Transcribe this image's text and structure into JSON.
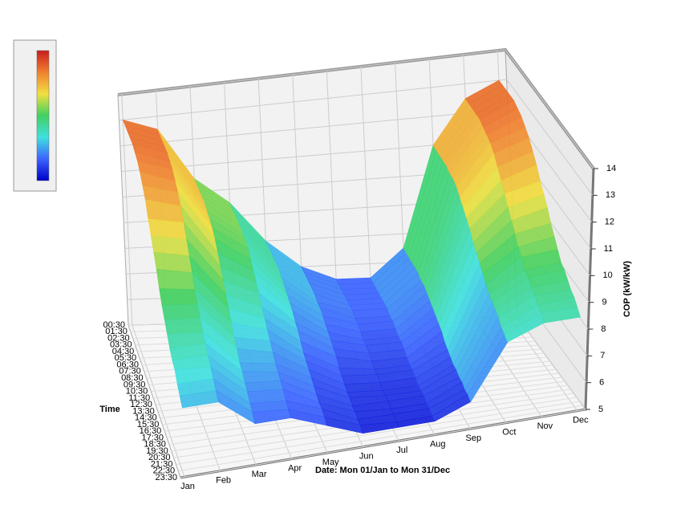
{
  "chart_data": {
    "type": "surface3d",
    "xlabel": "Date: Mon 01/Jan to Mon 31/Dec",
    "ylabel": "Time",
    "zlabel": "COP (kW/kW)",
    "x": [
      "Jan",
      "Feb",
      "Mar",
      "Apr",
      "May",
      "Jun",
      "Jul",
      "Aug",
      "Sep",
      "Oct",
      "Nov",
      "Dec"
    ],
    "y": [
      "00:30",
      "01:30",
      "02:30",
      "03:30",
      "04:30",
      "05:30",
      "06:30",
      "07:30",
      "08:30",
      "09:30",
      "10:30",
      "11:30",
      "12:30",
      "13:30",
      "14:30",
      "15:30",
      "16:30",
      "17:30",
      "18:30",
      "19:30",
      "20:30",
      "21:30",
      "22:30",
      "23:30"
    ],
    "z": [
      [
        13,
        13,
        13,
        13,
        13,
        12.9,
        12.8,
        12.6,
        12.3,
        12,
        11.5,
        11.1,
        10.7,
        10.3,
        9.8,
        9.4,
        9.1,
        8.8,
        8.5,
        8.3,
        8.2,
        7.9,
        7.7,
        7.5
      ],
      [
        12.5,
        12.5,
        12.5,
        12.5,
        12.5,
        12.4,
        12.3,
        12.1,
        11.9,
        11.6,
        11.2,
        10.8,
        10.4,
        10,
        9.6,
        9.3,
        9,
        8.7,
        8.5,
        8.3,
        8.1,
        7.9,
        7.7,
        7.5
      ],
      [
        10.5,
        10.5,
        10.5,
        10.5,
        10.5,
        10.4,
        10.3,
        10.2,
        10,
        9.7,
        9.4,
        9.1,
        8.8,
        8.5,
        8.2,
        7.9,
        7.7,
        7.4,
        7.3,
        7.1,
        7,
        6.8,
        6.7,
        6.5
      ],
      [
        9.5,
        9.5,
        9.5,
        9.5,
        9.5,
        9.4,
        9.4,
        9.3,
        9.1,
        8.9,
        8.7,
        8.5,
        8.2,
        8,
        7.8,
        7.6,
        7.4,
        7.2,
        7.1,
        7,
        6.9,
        6.7,
        6.6,
        6.5
      ],
      [
        8,
        8,
        8,
        8,
        8,
        8,
        7.9,
        7.8,
        7.7,
        7.6,
        7.5,
        7.3,
        7.2,
        7,
        6.8,
        6.7,
        6.6,
        6.5,
        6.4,
        6.3,
        6.2,
        6.2,
        6.1,
        6
      ],
      [
        7,
        7,
        7,
        7,
        7,
        7,
        6.9,
        6.9,
        6.8,
        6.7,
        6.6,
        6.5,
        6.4,
        6.3,
        6.1,
        6,
        5.9,
        5.8,
        5.8,
        5.7,
        5.7,
        5.6,
        5.6,
        5.5
      ],
      [
        6.5,
        6.5,
        6.5,
        6.5,
        6.5,
        6.5,
        6.5,
        6.4,
        6.4,
        6.3,
        6.2,
        6.2,
        6.1,
        6,
        5.9,
        5.9,
        5.8,
        5.7,
        5.7,
        5.7,
        5.6,
        5.6,
        5.5,
        5.5
      ],
      [
        6.5,
        6.5,
        6.5,
        6.5,
        6.5,
        6.5,
        6.5,
        6.4,
        6.4,
        6.3,
        6.2,
        6.2,
        6.1,
        6,
        5.9,
        5.9,
        5.8,
        5.7,
        5.7,
        5.7,
        5.6,
        5.6,
        5.5,
        5.5
      ],
      [
        7.5,
        7.5,
        7.5,
        7.5,
        7.5,
        7.5,
        7.4,
        7.4,
        7.3,
        7.2,
        7.1,
        7,
        6.9,
        6.8,
        6.6,
        6.5,
        6.4,
        6.3,
        6.3,
        6.2,
        6.2,
        6.1,
        6.1,
        6
      ],
      [
        11,
        11,
        11,
        11,
        11,
        10.9,
        10.9,
        10.8,
        10.6,
        10.4,
        10.2,
        10,
        9.7,
        9.5,
        9.3,
        9.1,
        8.9,
        8.7,
        8.6,
        8.5,
        8.4,
        8.2,
        8.1,
        8
      ],
      [
        12.5,
        12.5,
        12.5,
        12.5,
        12.5,
        12.4,
        12.3,
        12.2,
        12,
        11.7,
        11.4,
        11.1,
        10.8,
        10.5,
        10.2,
        9.9,
        9.7,
        9.4,
        9.3,
        9.1,
        9,
        8.8,
        8.7,
        8.5
      ],
      [
        13,
        13,
        13,
        13,
        13,
        12.9,
        12.8,
        12.6,
        12.4,
        12.1,
        11.8,
        11.4,
        11.1,
        10.8,
        10.4,
        10.1,
        9.8,
        9.5,
        9.4,
        9.2,
        9,
        8.9,
        8.7,
        8.5
      ]
    ],
    "zlim": [
      5,
      14
    ],
    "zticks": [
      5,
      6,
      7,
      8,
      9,
      10,
      11,
      12,
      13,
      14
    ],
    "grid": true,
    "colorscale": [
      "#0000c8",
      "#3c64ff",
      "#40e0e0",
      "#40d060",
      "#f0e040",
      "#f08030",
      "#c81e1e"
    ]
  }
}
